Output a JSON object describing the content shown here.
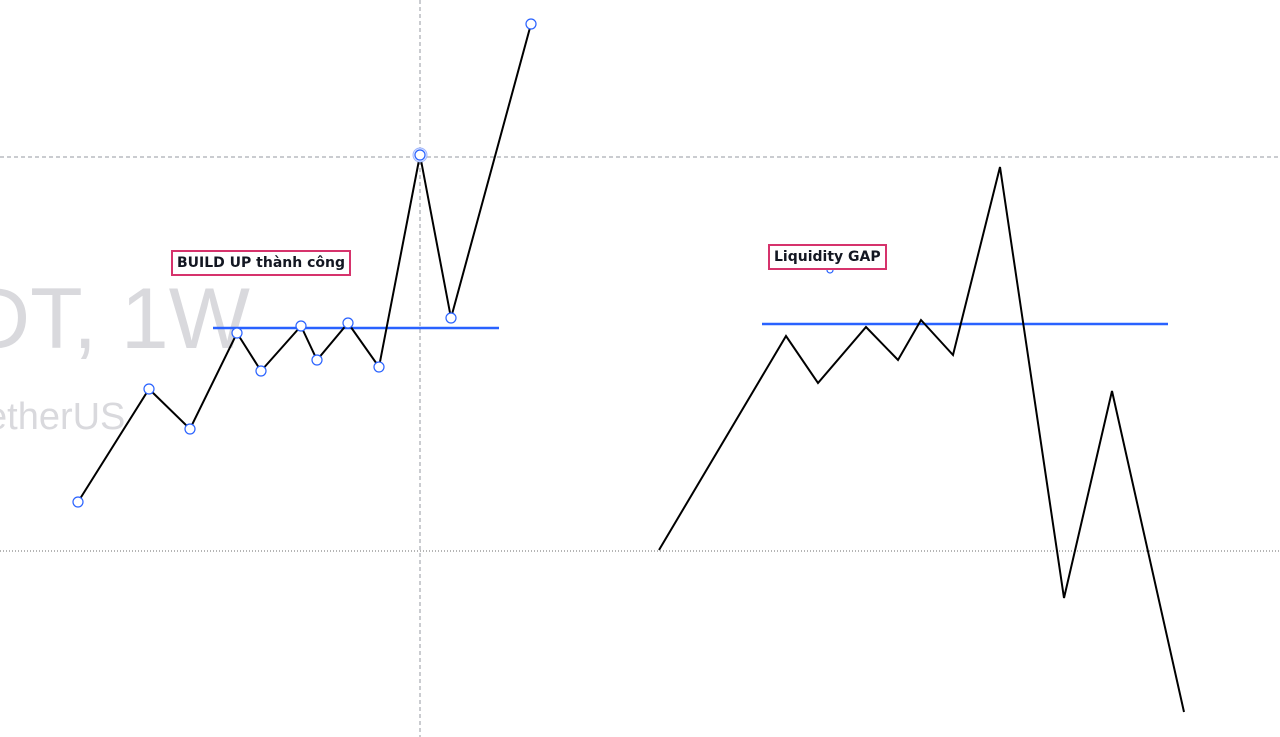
{
  "watermark": {
    "symbol_text": "DT, 1W",
    "description_text": "etherUS"
  },
  "labels": {
    "build_up": "BUILD UP thành công",
    "liquidity_gap": "Liquidity GAP"
  },
  "colors": {
    "background": "#ffffff",
    "price_line": "#000000",
    "level_line": "#2962ff",
    "label_border": "#d6336c",
    "anchor_fill": "#ffffff",
    "anchor_stroke": "#2962ff",
    "crosshair": "#9598a1",
    "watermark": "#d9d9dd"
  },
  "drawings": {
    "left_path_anchor_count": 11,
    "selected_anchor_index": 8
  }
}
